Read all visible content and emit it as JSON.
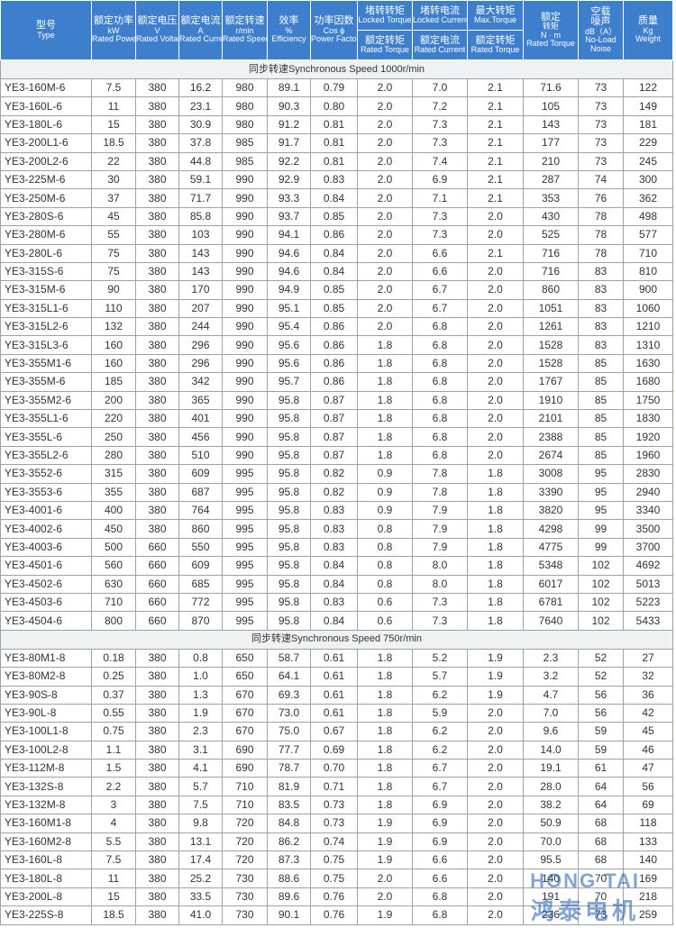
{
  "table": {
    "header": [
      {
        "lines": [
          "型号",
          "Type"
        ]
      },
      {
        "lines": [
          "额定功率",
          "kW",
          "Rated Power"
        ]
      },
      {
        "lines": [
          "额定电压",
          "V",
          "Rated Voltage"
        ]
      },
      {
        "lines": [
          "额定电流",
          "A",
          "Rated Current"
        ]
      },
      {
        "lines": [
          "额定转速",
          "r/min",
          "Rated Speed"
        ]
      },
      {
        "lines": [
          "效率",
          "%",
          "Efficiency"
        ]
      },
      {
        "lines": [
          "功率因数",
          "Cos ϕ",
          "Power Factor"
        ]
      },
      {
        "top": [
          "堵转转矩",
          "Locked Torque"
        ],
        "bottom": [
          "额定转矩",
          "Rated Torque"
        ]
      },
      {
        "top": [
          "堵转电流",
          "Locked Current"
        ],
        "bottom": [
          "额定电流",
          "Rated Current"
        ]
      },
      {
        "top": [
          "最大转矩",
          "Max.Torque"
        ],
        "bottom": [
          "额定转矩",
          "Rated Torque"
        ]
      },
      {
        "lines": [
          "额定",
          "转矩",
          "N · m",
          "Rated Torque"
        ]
      },
      {
        "lines": [
          "空载",
          "噪声",
          "dB（A）",
          "No-Load",
          "Noise"
        ]
      },
      {
        "lines": [
          "质量",
          "Kg",
          "Weight"
        ]
      }
    ],
    "sections": [
      {
        "title": "同步转速Synchronous Speed  1000r/min",
        "rows": [
          [
            "YE3-160M-6",
            "7.5",
            "380",
            "16.2",
            "980",
            "89.1",
            "0.79",
            "2.0",
            "7.0",
            "2.1",
            "71.6",
            "73",
            "122"
          ],
          [
            "YE3-160L-6",
            "11",
            "380",
            "23.1",
            "980",
            "90.3",
            "0.80",
            "2.0",
            "7.2",
            "2.1",
            "105",
            "73",
            "149"
          ],
          [
            "YE3-180L-6",
            "15",
            "380",
            "30.9",
            "980",
            "91.2",
            "0.81",
            "2.0",
            "7.3",
            "2.1",
            "143",
            "73",
            "181"
          ],
          [
            "YE3-200L1-6",
            "18.5",
            "380",
            "37.8",
            "985",
            "91.7",
            "0.81",
            "2.0",
            "7.3",
            "2.1",
            "177",
            "73",
            "229"
          ],
          [
            "YE3-200L2-6",
            "22",
            "380",
            "44.8",
            "985",
            "92.2",
            "0.81",
            "2.0",
            "7.4",
            "2.1",
            "210",
            "73",
            "245"
          ],
          [
            "YE3-225M-6",
            "30",
            "380",
            "59.1",
            "990",
            "92.9",
            "0.83",
            "2.0",
            "6.9",
            "2.1",
            "287",
            "74",
            "300"
          ],
          [
            "YE3-250M-6",
            "37",
            "380",
            "71.7",
            "990",
            "93.3",
            "0.84",
            "2.0",
            "7.1",
            "2.1",
            "353",
            "76",
            "362"
          ],
          [
            "YE3-280S-6",
            "45",
            "380",
            "85.8",
            "990",
            "93.7",
            "0.85",
            "2.0",
            "7.3",
            "2.0",
            "430",
            "78",
            "498"
          ],
          [
            "YE3-280M-6",
            "55",
            "380",
            "103",
            "990",
            "94.1",
            "0.86",
            "2.0",
            "7.3",
            "2.0",
            "525",
            "78",
            "577"
          ],
          [
            "YE3-280L-6",
            "75",
            "380",
            "143",
            "990",
            "94.6",
            "0.84",
            "2.0",
            "6.6",
            "2.1",
            "716",
            "78",
            "710"
          ],
          [
            "YE3-315S-6",
            "75",
            "380",
            "143",
            "990",
            "94.6",
            "0.84",
            "2.0",
            "6.6",
            "2.0",
            "716",
            "83",
            "810"
          ],
          [
            "YE3-315M-6",
            "90",
            "380",
            "170",
            "990",
            "94.9",
            "0.85",
            "2.0",
            "6.7",
            "2.0",
            "860",
            "83",
            "900"
          ],
          [
            "YE3-315L1-6",
            "110",
            "380",
            "207",
            "990",
            "95.1",
            "0.85",
            "2.0",
            "6.7",
            "2.0",
            "1051",
            "83",
            "1060"
          ],
          [
            "YE3-315L2-6",
            "132",
            "380",
            "244",
            "990",
            "95.4",
            "0.86",
            "2.0",
            "6.8",
            "2.0",
            "1261",
            "83",
            "1210"
          ],
          [
            "YE3-315L3-6",
            "160",
            "380",
            "296",
            "990",
            "95.6",
            "0.86",
            "1.8",
            "6.8",
            "2.0",
            "1528",
            "83",
            "1310"
          ],
          [
            "YE3-355M1-6",
            "160",
            "380",
            "296",
            "990",
            "95.6",
            "0.86",
            "1.8",
            "6.8",
            "2.0",
            "1528",
            "85",
            "1630"
          ],
          [
            "YE3-355M-6",
            "185",
            "380",
            "342",
            "990",
            "95.7",
            "0.86",
            "1.8",
            "6.8",
            "2.0",
            "1767",
            "85",
            "1680"
          ],
          [
            "YE3-355M2-6",
            "200",
            "380",
            "365",
            "990",
            "95.8",
            "0.87",
            "1.8",
            "6.8",
            "2.0",
            "1910",
            "85",
            "1750"
          ],
          [
            "YE3-355L1-6",
            "220",
            "380",
            "401",
            "990",
            "95.8",
            "0.87",
            "1.8",
            "6.8",
            "2.0",
            "2101",
            "85",
            "1830"
          ],
          [
            "YE3-355L-6",
            "250",
            "380",
            "456",
            "990",
            "95.8",
            "0.87",
            "1.8",
            "6.8",
            "2.0",
            "2388",
            "85",
            "1920"
          ],
          [
            "YE3-355L2-6",
            "280",
            "380",
            "510",
            "990",
            "95.8",
            "0.87",
            "1.8",
            "6.8",
            "2.0",
            "2674",
            "85",
            "1960"
          ],
          [
            "YE3-3552-6",
            "315",
            "380",
            "609",
            "995",
            "95.8",
            "0.82",
            "0.9",
            "7.8",
            "1.8",
            "3008",
            "95",
            "2830"
          ],
          [
            "YE3-3553-6",
            "355",
            "380",
            "687",
            "995",
            "95.8",
            "0.82",
            "0.9",
            "7.8",
            "1.8",
            "3390",
            "95",
            "2940"
          ],
          [
            "YE3-4001-6",
            "400",
            "380",
            "764",
            "995",
            "95.8",
            "0.83",
            "0.9",
            "7.9",
            "1.8",
            "3820",
            "95",
            "3340"
          ],
          [
            "YE3-4002-6",
            "450",
            "380",
            "860",
            "995",
            "95.8",
            "0.83",
            "0.8",
            "7.9",
            "1.8",
            "4298",
            "99",
            "3500"
          ],
          [
            "YE3-4003-6",
            "500",
            "660",
            "550",
            "995",
            "95.8",
            "0.83",
            "0.8",
            "7.9",
            "1.8",
            "4775",
            "99",
            "3700"
          ],
          [
            "YE3-4501-6",
            "560",
            "660",
            "609",
            "995",
            "95.8",
            "0.84",
            "0.8",
            "8.0",
            "1.8",
            "5348",
            "102",
            "4692"
          ],
          [
            "YE3-4502-6",
            "630",
            "660",
            "685",
            "995",
            "95.8",
            "0.84",
            "0.8",
            "8.0",
            "1.8",
            "6017",
            "102",
            "5013"
          ],
          [
            "YE3-4503-6",
            "710",
            "660",
            "772",
            "995",
            "95.8",
            "0.83",
            "0.6",
            "7.3",
            "1.8",
            "6781",
            "102",
            "5223"
          ],
          [
            "YE3-4504-6",
            "800",
            "660",
            "870",
            "995",
            "95.8",
            "0.84",
            "0.6",
            "7.3",
            "1.8",
            "7640",
            "102",
            "5433"
          ]
        ]
      },
      {
        "title": "同步转速Synchronous Speed  750r/min",
        "rows": [
          [
            "YE3-80M1-8",
            "0.18",
            "380",
            "0.8",
            "650",
            "58.7",
            "0.61",
            "1.8",
            "5.2",
            "1.9",
            "2.3",
            "52",
            "27"
          ],
          [
            "YE3-80M2-8",
            "0.25",
            "380",
            "1.0",
            "650",
            "64.1",
            "0.61",
            "1.8",
            "5.7",
            "1.9",
            "3.2",
            "52",
            "32"
          ],
          [
            "YE3-90S-8",
            "0.37",
            "380",
            "1.3",
            "670",
            "69.3",
            "0.61",
            "1.8",
            "6.2",
            "1.9",
            "4.7",
            "56",
            "36"
          ],
          [
            "YE3-90L-8",
            "0.55",
            "380",
            "1.9",
            "670",
            "73.0",
            "0.61",
            "1.8",
            "5.9",
            "2.0",
            "7.0",
            "56",
            "42"
          ],
          [
            "YE3-100L1-8",
            "0.75",
            "380",
            "2.3",
            "670",
            "75.0",
            "0.67",
            "1.8",
            "6.2",
            "2.0",
            "9.6",
            "59",
            "45"
          ],
          [
            "YE3-100L2-8",
            "1.1",
            "380",
            "3.1",
            "690",
            "77.7",
            "0.69",
            "1.8",
            "6.2",
            "2.0",
            "14.0",
            "59",
            "46"
          ],
          [
            "YE3-112M-8",
            "1.5",
            "380",
            "4.1",
            "690",
            "78.7",
            "0.70",
            "1.8",
            "6.7",
            "2.0",
            "19.1",
            "61",
            "47"
          ],
          [
            "YE3-132S-8",
            "2.2",
            "380",
            "5.7",
            "710",
            "81.9",
            "0.71",
            "1.8",
            "6.7",
            "2.0",
            "28.0",
            "64",
            "56"
          ],
          [
            "YE3-132M-8",
            "3",
            "380",
            "7.5",
            "710",
            "83.5",
            "0.73",
            "1.8",
            "6.9",
            "2.0",
            "38.2",
            "64",
            "69"
          ],
          [
            "YE3-160M1-8",
            "4",
            "380",
            "9.8",
            "720",
            "84.8",
            "0.73",
            "1.9",
            "6.9",
            "2.0",
            "50.9",
            "68",
            "118"
          ],
          [
            "YE3-160M2-8",
            "5.5",
            "380",
            "13.1",
            "720",
            "86.2",
            "0.74",
            "1.9",
            "6.9",
            "2.0",
            "70.0",
            "68",
            "133"
          ],
          [
            "YE3-160L-8",
            "7.5",
            "380",
            "17.4",
            "720",
            "87.3",
            "0.75",
            "1.9",
            "6.6",
            "2.0",
            "95.5",
            "68",
            "140"
          ],
          [
            "YE3-180L-8",
            "11",
            "380",
            "25.2",
            "730",
            "88.6",
            "0.75",
            "2.0",
            "6.6",
            "2.0",
            "140",
            "70",
            "169"
          ],
          [
            "YE3-200L-8",
            "15",
            "380",
            "33.5",
            "730",
            "89.6",
            "0.76",
            "2.0",
            "6.8",
            "2.0",
            "191",
            "70",
            "218"
          ],
          [
            "YE3-225S-8",
            "18.5",
            "380",
            "41.0",
            "730",
            "90.1",
            "0.76",
            "1.9",
            "6.8",
            "2.0",
            "236",
            "73",
            "259"
          ]
        ]
      }
    ]
  },
  "watermark": {
    "brand": "HONG TAI",
    "name": "鸿泰电机"
  }
}
